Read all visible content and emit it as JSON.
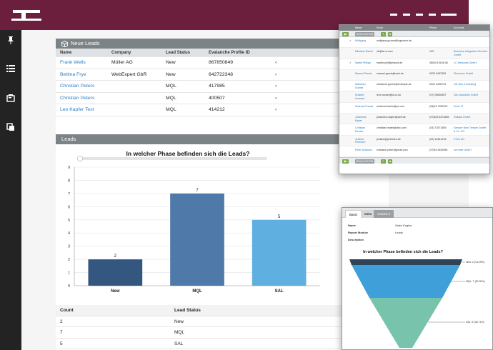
{
  "colors": {
    "brand": "#6b1f3c",
    "panel_header": "#7c8387",
    "link": "#2a7cc0",
    "bar_new": "#34577f",
    "bar_mql": "#4f79a8",
    "bar_sal": "#5fb0e0",
    "funnel_new": "#2f4357",
    "funnel_mql": "#3f9fd8",
    "funnel_sal": "#77c3ab"
  },
  "sidebar": {
    "icons": [
      "pin-icon",
      "list-icon",
      "card-icon",
      "copy-icon"
    ]
  },
  "leads_panel": {
    "title": "Neue Leads",
    "columns": [
      "Name",
      "Company",
      "Lead Status",
      "Evalanche Profile ID"
    ],
    "rows": [
      {
        "name": "Frank Wells",
        "company": "Müller AG",
        "status": "New",
        "profile_id": "867850849"
      },
      {
        "name": "Bettina Frye",
        "company": "WebExpert GbR",
        "status": "New",
        "profile_id": "642722348"
      },
      {
        "name": "Christian Peters",
        "company": "",
        "status": "MQL",
        "profile_id": "417985"
      },
      {
        "name": "Christian Peters",
        "company": "",
        "status": "MQL",
        "profile_id": "400507"
      },
      {
        "name": "Leo Kapfer Test",
        "company": "",
        "status": "MQL",
        "profile_id": "414212"
      }
    ]
  },
  "chart_panel": {
    "title": "Leads"
  },
  "chart_data": {
    "type": "bar",
    "title": "In welcher Phase befinden sich die Leads?",
    "categories": [
      "New",
      "MQL",
      "SAL"
    ],
    "values": [
      2,
      7,
      5
    ],
    "ylim": [
      0,
      9
    ],
    "yticks": [
      "0",
      "1",
      "2",
      "3",
      "4",
      "5",
      "6",
      "7",
      "8",
      "9"
    ],
    "grid": true
  },
  "count_table": {
    "columns": [
      "Count",
      "Lead Status"
    ],
    "rows": [
      {
        "count": "2",
        "status": "New"
      },
      {
        "count": "7",
        "status": "MQL"
      },
      {
        "count": "5",
        "status": "SAL"
      }
    ]
  },
  "overlay_list": {
    "columns": [
      "Name",
      "Email",
      "Phone",
      "Accounts"
    ],
    "bulk_label": "BULK ACTION",
    "rows": [
      {
        "name": "Wolfgang",
        "email": "wolfgang.gruner@ingenieur.de",
        "phone": "",
        "account": ""
      },
      {
        "name": "Nikolaus Rauch",
        "email": "nb@ts-ru.com",
        "phone": "123",
        "account": "Business Integration Services GmbH"
      },
      {
        "name": "Martin Philipp",
        "email": "martin.phil@phamd.de",
        "phone": "0800/119108 06",
        "account": "LC Networks GmbH"
      },
      {
        "name": "Manuel Garcia",
        "email": "manuel.garcia@web.de",
        "phone": "0030 5457653",
        "account": "Electronic GmbH"
      },
      {
        "name": "Marianne Guerra",
        "email": "marianne.guerra@example.de",
        "phone": "0022 4436743",
        "account": "UN Vins Consulting"
      },
      {
        "name": "Ruckert Leonard",
        "email": "leon.ruckert@d.co.uk",
        "phone": "(07) 09630557",
        "account": "Sec Industries GmbH"
      },
      {
        "name": "Andreas Franks",
        "email": "andreas.franks@qx.com",
        "phone": "(08)03 7053013",
        "account": "Sonic IE"
      },
      {
        "name": "Johannes Mayer",
        "email": "johannes.mayer@web.de",
        "phone": "(07)923 8371605",
        "account": "Roliabs GmbH"
      },
      {
        "name": "Christian Reutes",
        "email": "christian.reutes@abc.com",
        "phone": "(03) 72571859",
        "account": "Semper Nein Temper GmbH & Co. KG"
      },
      {
        "name": "Jenkins Petersen",
        "email": "jenkins@petersen.de",
        "phone": "(02) 13441415",
        "account": "eTrex AG"
      },
      {
        "name": "Peter Mokiston",
        "email": "mokiston.peter@gmail.com",
        "phone": "(07)94 3453945",
        "account": "Aeronite GmbH"
      }
    ]
  },
  "overlay_detail": {
    "tabs": [
      "Basic",
      "Meta",
      "Actions"
    ],
    "fields": [
      {
        "label": "Name",
        "value": "Sales Engine"
      },
      {
        "label": "Report Module",
        "value": "Leads"
      },
      {
        "label": "Description",
        "value": ""
      }
    ],
    "funnel_title": "In welcher Phase befinden sich die Leads?",
    "funnel_labels": [
      "New: 2 (14.29%)",
      "MQL: 7 (50.00%)",
      "SAL: 5 (35.71%)"
    ]
  }
}
